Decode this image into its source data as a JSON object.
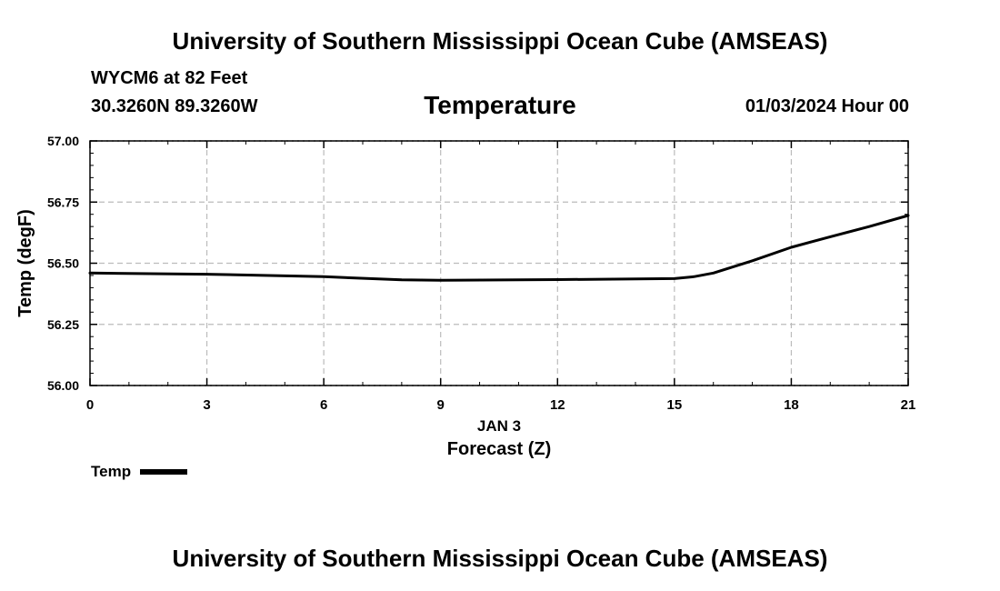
{
  "header": {
    "title": "University of Southern Mississippi Ocean Cube (AMSEAS)",
    "station": "WYCM6 at 82 Feet",
    "coords": "30.3260N  89.3260W",
    "chart_title": "Temperature",
    "date": "01/03/2024 Hour 00"
  },
  "footer": {
    "title": "University of Southern Mississippi Ocean Cube (AMSEAS)"
  },
  "legend": {
    "label": "Temp"
  },
  "colors": {
    "line": "#000000",
    "grid": "#bbbbbb"
  },
  "chart_data": {
    "type": "line",
    "title": "Temperature",
    "xlabel": "Forecast (Z)",
    "xlabel_date": "JAN 3",
    "ylabel": "Temp (degF)",
    "xlim": [
      0,
      21
    ],
    "ylim": [
      56.0,
      57.0
    ],
    "xticks": [
      0,
      3,
      6,
      9,
      12,
      15,
      18,
      21
    ],
    "yticks": [
      "56.00",
      "56.25",
      "56.50",
      "56.75",
      "57.00"
    ],
    "grid": true,
    "legend_position": "bottom-left",
    "series": [
      {
        "name": "Temp",
        "x": [
          0,
          3,
          6,
          8,
          9,
          12,
          15,
          15.5,
          16,
          17,
          18,
          19,
          20,
          21
        ],
        "values": [
          56.46,
          56.455,
          56.445,
          56.432,
          56.43,
          56.433,
          56.437,
          56.445,
          56.46,
          56.51,
          56.565,
          56.608,
          56.65,
          56.695
        ]
      }
    ]
  }
}
